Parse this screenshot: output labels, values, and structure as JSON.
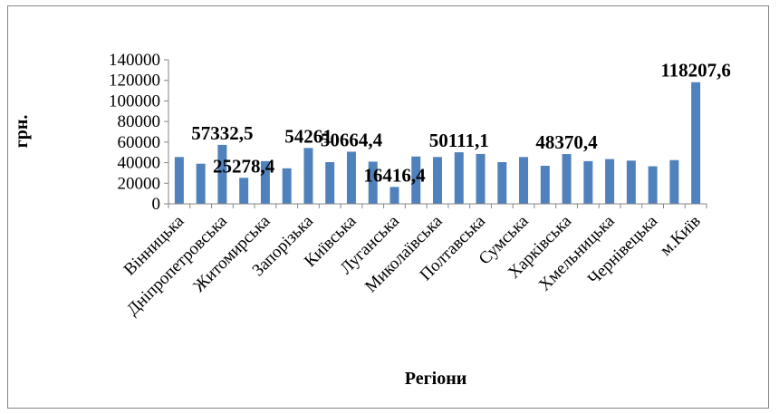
{
  "chart_data": {
    "type": "bar",
    "xlabel": "Регіони",
    "ylabel": "грн.",
    "ylim": [
      0,
      140000
    ],
    "yticks": [
      "0",
      "20000",
      "40000",
      "60000",
      "80000",
      "100000",
      "120000",
      "140000"
    ],
    "grid": false,
    "legend": "none",
    "bar_color": "#4F81BD",
    "bars": [
      {
        "value": 45500
      },
      {
        "value": 39000
      },
      {
        "value": 57332.5,
        "label": "57332,5"
      },
      {
        "value": 25278.4,
        "label": "25278,4"
      },
      {
        "value": 41500
      },
      {
        "value": 34500
      },
      {
        "value": 54261,
        "label": "54261"
      },
      {
        "value": 40500
      },
      {
        "value": 50664.4,
        "label": "50664,4"
      },
      {
        "value": 41000
      },
      {
        "value": 16416.4,
        "label": "16416,4"
      },
      {
        "value": 46000
      },
      {
        "value": 45500
      },
      {
        "value": 50111.1,
        "label": "50111,1"
      },
      {
        "value": 48500
      },
      {
        "value": 40500
      },
      {
        "value": 45500
      },
      {
        "value": 37000
      },
      {
        "value": 48370.4,
        "label": "48370,4"
      },
      {
        "value": 41500
      },
      {
        "value": 43500
      },
      {
        "value": 42000
      },
      {
        "value": 36500
      },
      {
        "value": 42500
      },
      {
        "value": 118207.6,
        "label": "118207,6"
      }
    ],
    "category_labels": [
      {
        "bar": 0,
        "text": "Вінницька"
      },
      {
        "bar": 2,
        "text": "Дніпропетровська"
      },
      {
        "bar": 4,
        "text": "Житомирська"
      },
      {
        "bar": 6,
        "text": "Запорізька"
      },
      {
        "bar": 8,
        "text": "Київська"
      },
      {
        "bar": 10,
        "text": "Луганська"
      },
      {
        "bar": 12,
        "text": "Миколаївська"
      },
      {
        "bar": 14,
        "text": "Полтавська"
      },
      {
        "bar": 16,
        "text": "Сумська"
      },
      {
        "bar": 18,
        "text": "Харківська"
      },
      {
        "bar": 20,
        "text": "Хмельницька"
      },
      {
        "bar": 22,
        "text": "Чернівецька"
      },
      {
        "bar": 24,
        "text": "м.Київ"
      }
    ]
  }
}
